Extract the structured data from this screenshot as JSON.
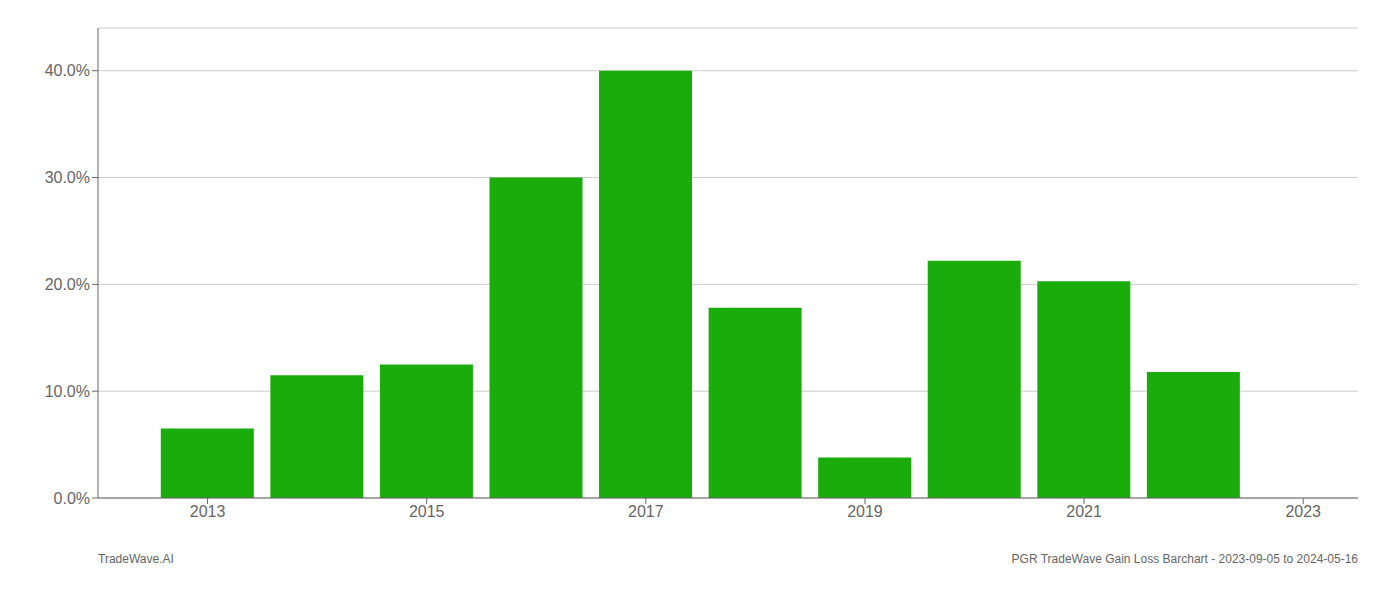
{
  "chart_data": {
    "type": "bar",
    "x": [
      2013,
      2014,
      2015,
      2016,
      2017,
      2018,
      2019,
      2020,
      2021,
      2022
    ],
    "values": [
      0.065,
      0.115,
      0.125,
      0.3,
      0.4,
      0.178,
      0.038,
      0.222,
      0.203,
      0.118
    ],
    "color": "#1aac0a",
    "xlim": [
      2012.0,
      2023.5
    ],
    "xticks": [
      2013,
      2015,
      2017,
      2019,
      2021,
      2023
    ],
    "ylim": [
      0.0,
      0.44
    ],
    "yticks": [
      {
        "value": 0.0,
        "label": "0.0%"
      },
      {
        "value": 0.1,
        "label": "10.0%"
      },
      {
        "value": 0.2,
        "label": "20.0%"
      },
      {
        "value": 0.3,
        "label": "30.0%"
      },
      {
        "value": 0.4,
        "label": "40.0%"
      }
    ],
    "grid": true,
    "annotations": [
      "TradeWave.AI",
      "PGR TradeWave Gain Loss Barchart - 2023-09-05 to 2024-05-16"
    ]
  }
}
